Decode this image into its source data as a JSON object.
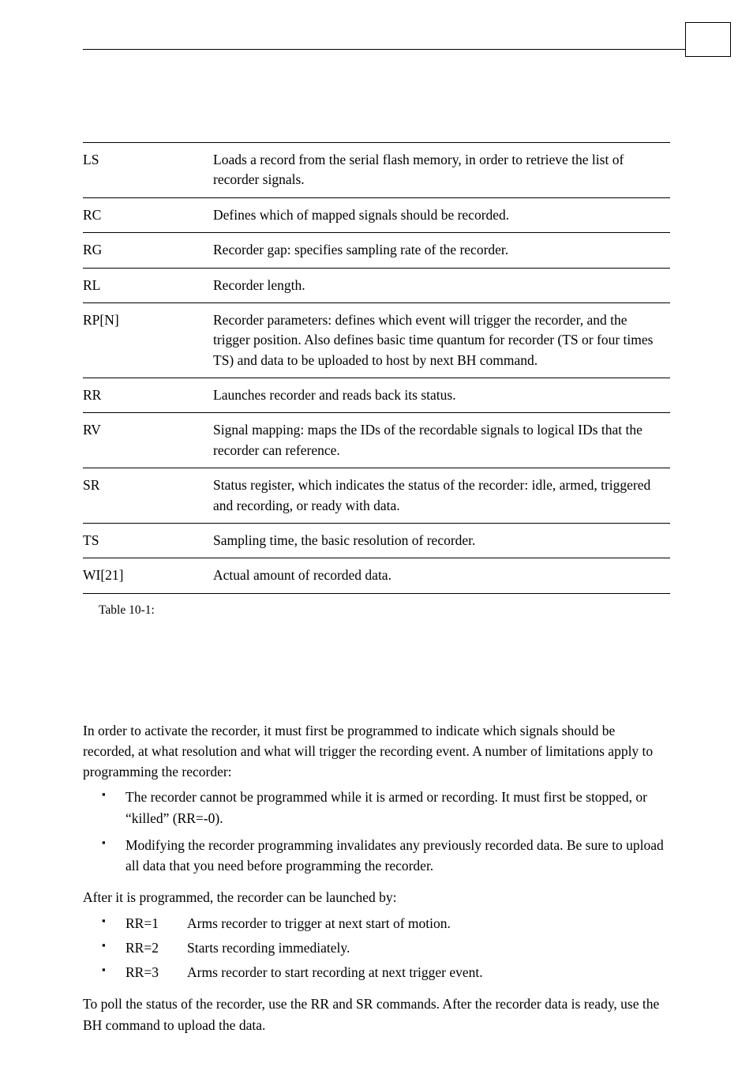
{
  "table": {
    "rows": [
      {
        "cmd": "LS",
        "desc": "Loads a record from the serial flash memory, in order to retrieve the list of recorder signals."
      },
      {
        "cmd": "RC",
        "desc": "Defines which of mapped signals should be recorded."
      },
      {
        "cmd": "RG",
        "desc": "Recorder gap: specifies sampling rate of the recorder."
      },
      {
        "cmd": "RL",
        "desc": "Recorder length."
      },
      {
        "cmd": "RP[N]",
        "desc": "Recorder parameters: defines which event will trigger the recorder, and the trigger position. Also defines basic time quantum for recorder (TS or four times TS) and data to be uploaded to host by next BH command."
      },
      {
        "cmd": "RR",
        "desc": "Launches recorder and reads back its status."
      },
      {
        "cmd": "RV",
        "desc": "Signal mapping: maps the IDs of the recordable signals to logical IDs that the recorder can reference."
      },
      {
        "cmd": "SR",
        "desc": "Status register, which indicates the status of the recorder: idle, armed, triggered and recording, or ready with data."
      },
      {
        "cmd": "TS",
        "desc": "Sampling time, the basic resolution of recorder."
      },
      {
        "cmd": "WI[21]",
        "desc": "Actual amount of recorded data."
      }
    ],
    "caption": "Table 10-1:"
  },
  "body": {
    "intro": "In order to activate the recorder, it must first be programmed to indicate which signals should be recorded, at what resolution and what will trigger the recording event. A number of limitations apply to programming the recorder:",
    "bullets": [
      "The recorder cannot be programmed while it is armed or recording. It must first be stopped, or “killed” (RR=-0).",
      "Modifying the recorder programming invalidates any previously recorded data. Be sure to upload all data that you need before programming the recorder."
    ],
    "after_program": "After it is programmed, the recorder can be launched by:",
    "rr_items": [
      {
        "key": "RR=1",
        "val": "Arms recorder to trigger at next start of motion."
      },
      {
        "key": "RR=2",
        "val": "Starts recording immediately."
      },
      {
        "key": "RR=3",
        "val": "Arms recorder to start recording at next trigger event."
      }
    ],
    "closing": "To poll the status of the recorder, use the RR and SR commands. After the recorder data is ready, use the BH command to upload the data."
  }
}
